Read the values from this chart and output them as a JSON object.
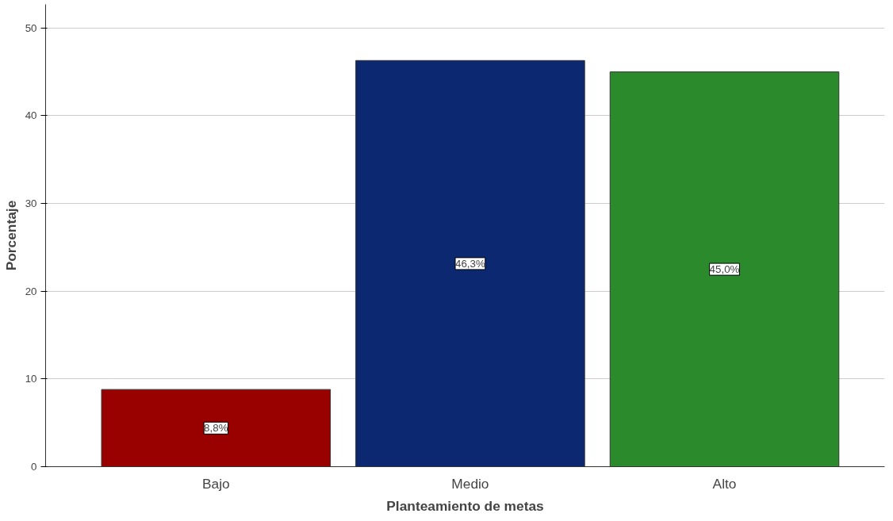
{
  "chart_data": {
    "type": "bar",
    "xlabel": "Planteamiento de metas",
    "ylabel": "Porcentaje",
    "categories": [
      "Bajo",
      "Medio",
      "Alto"
    ],
    "values": [
      8.8,
      46.3,
      45.0
    ],
    "colors": [
      "#990000",
      "#0b2870",
      "#2b8a2b"
    ],
    "value_labels": [
      "8,8%",
      "46,3%",
      "45,0%"
    ],
    "ylim": [
      0,
      52.7
    ],
    "yticks": [
      0,
      10,
      20,
      30,
      40,
      50
    ],
    "grid": "y"
  }
}
